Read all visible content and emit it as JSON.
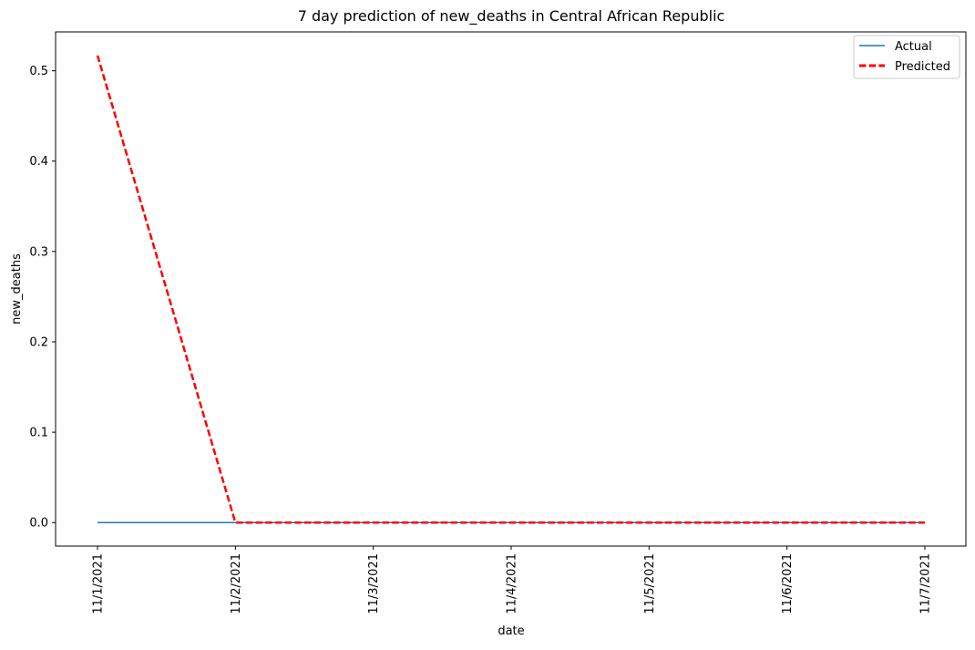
{
  "chart_data": {
    "type": "line",
    "title": "7 day prediction of new_deaths in Central African Republic",
    "xlabel": "date",
    "ylabel": "new_deaths",
    "x": [
      "11/1/2021",
      "11/2/2021",
      "11/3/2021",
      "11/4/2021",
      "11/5/2021",
      "11/6/2021",
      "11/7/2021"
    ],
    "yticks": [
      "0.0",
      "0.1",
      "0.2",
      "0.3",
      "0.4",
      "0.5"
    ],
    "ylim": [
      -0.026,
      0.543
    ],
    "grid": false,
    "legend_position": "top-right",
    "series": [
      {
        "name": "Actual",
        "values": [
          0,
          0,
          0,
          0,
          0,
          0,
          0
        ],
        "color": "#1f77b4",
        "style": "solid"
      },
      {
        "name": "Predicted",
        "values": [
          0.517,
          0,
          0,
          0,
          0,
          0,
          0
        ],
        "color": "#ff0000",
        "style": "dashed"
      }
    ]
  }
}
